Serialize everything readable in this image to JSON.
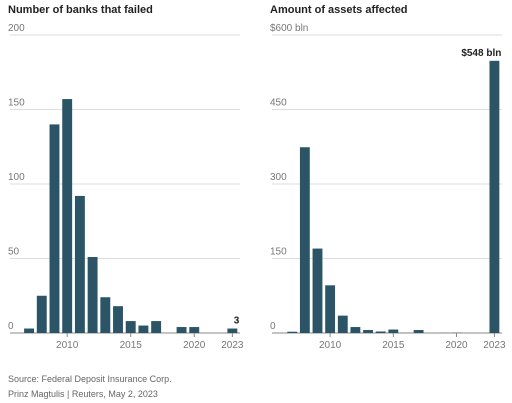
{
  "chart_data": [
    {
      "type": "bar",
      "title": "Number of banks that failed",
      "x": [
        2007,
        2008,
        2009,
        2010,
        2011,
        2012,
        2013,
        2014,
        2015,
        2016,
        2017,
        2018,
        2019,
        2020,
        2021,
        2022,
        2023
      ],
      "values": [
        3,
        25,
        140,
        157,
        92,
        51,
        24,
        18,
        8,
        5,
        8,
        0,
        4,
        4,
        0,
        0,
        3
      ],
      "value_labels": [
        null,
        null,
        null,
        null,
        null,
        null,
        null,
        null,
        null,
        null,
        null,
        null,
        null,
        null,
        null,
        null,
        "3"
      ],
      "color": "#2b5566",
      "xlim": [
        2005.5,
        2023.6
      ],
      "xticks": [
        2010,
        2015,
        2020,
        2023
      ],
      "ylim": [
        0,
        200
      ],
      "yticks": [
        0,
        50,
        100,
        150,
        200
      ],
      "grid": true
    },
    {
      "type": "bar",
      "title": "Amount of assets affected",
      "x": [
        2007,
        2008,
        2009,
        2010,
        2011,
        2012,
        2013,
        2014,
        2015,
        2016,
        2017,
        2018,
        2019,
        2020,
        2021,
        2022,
        2023
      ],
      "values": [
        2.6,
        374,
        170,
        96,
        35,
        12,
        6,
        3,
        7,
        0.3,
        6,
        0,
        0.2,
        0.5,
        0,
        0,
        548
      ],
      "value_labels": [
        null,
        null,
        null,
        null,
        null,
        null,
        null,
        null,
        null,
        null,
        null,
        null,
        null,
        null,
        null,
        null,
        "$548 bln"
      ],
      "color": "#2b5566",
      "xlim": [
        2005.4,
        2023.6
      ],
      "xticks": [
        2010,
        2015,
        2020,
        2023
      ],
      "ylim": [
        0,
        600
      ],
      "yticks": [
        0,
        150,
        300,
        450,
        {
          "value": 600,
          "label": "$600 bln"
        }
      ],
      "grid": true
    }
  ],
  "footer": {
    "source": "Source: Federal Deposit Insurance Corp.",
    "credit": "Prinz Magtulis  |  Reuters, May 2, 2023"
  }
}
